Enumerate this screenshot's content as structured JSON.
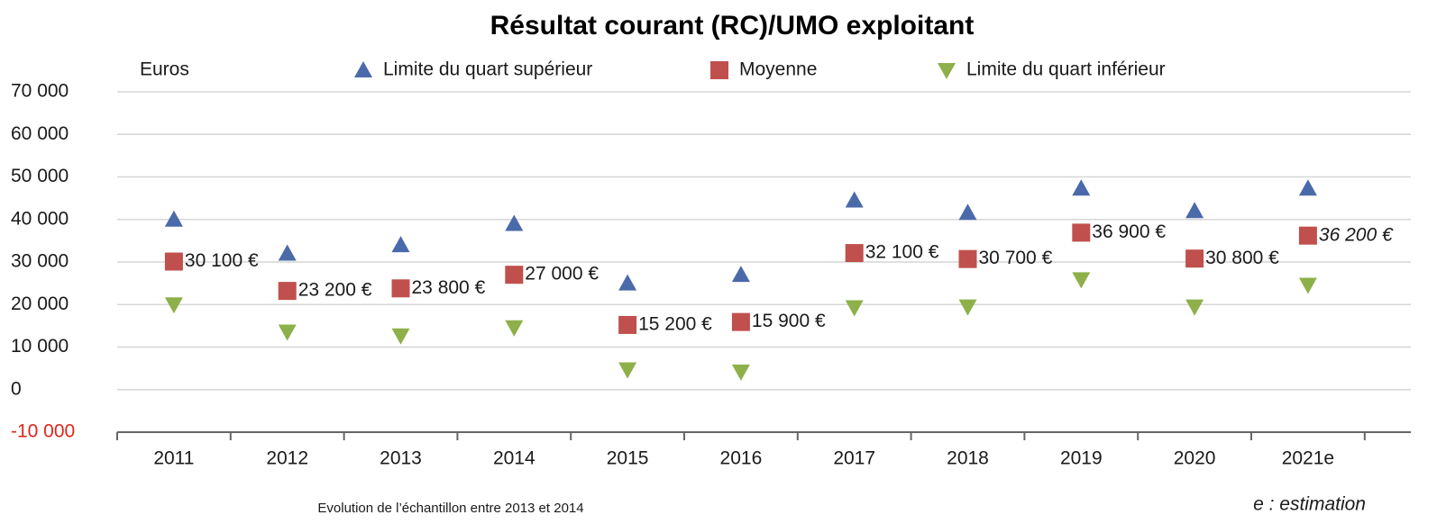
{
  "chart_data": {
    "type": "scatter",
    "title": "Résultat courant (RC)/UMO exploitant",
    "y_unit": "Euros",
    "footnote": "Evolution de l’échantillon entre 2013 et 2014",
    "estimation_note": "e : estimation",
    "categories": [
      "2011",
      "2012",
      "2013",
      "2014",
      "2015",
      "2016",
      "2017",
      "2018",
      "2019",
      "2020",
      "2021e"
    ],
    "series": [
      {
        "name": "Limite du quart supérieur",
        "color": "#4a6aaa",
        "marker": "triangle-up",
        "values": [
          40000,
          32000,
          34000,
          39000,
          25000,
          27000,
          44500,
          41600,
          47300,
          42000,
          47300
        ]
      },
      {
        "name": "Moyenne",
        "color": "#c0504d",
        "marker": "square",
        "values": [
          30100,
          23200,
          23800,
          27000,
          15200,
          15900,
          32100,
          30700,
          36900,
          30800,
          36200
        ],
        "value_labels": [
          "30 100 €",
          "23 200 €",
          "23 800 €",
          "27 000 €",
          "15 200 €",
          "15 900 €",
          "32 100 €",
          "30 700 €",
          "36 900 €",
          "30 800 €",
          "36 200 €"
        ]
      },
      {
        "name": "Limite du quart inférieur",
        "color": "#8db04a",
        "marker": "triangle-down",
        "values": [
          20000,
          13600,
          12700,
          14600,
          4700,
          4200,
          19300,
          19500,
          25900,
          19500,
          24600
        ]
      }
    ],
    "ylim": [
      -10000,
      70000
    ],
    "yticks": [
      {
        "value": -10000,
        "label": "-10 000"
      },
      0,
      {
        "value": 10000,
        "label": "10 000"
      },
      {
        "value": 20000,
        "label": "20 000"
      },
      {
        "value": 30000,
        "label": "30 000"
      },
      {
        "value": 40000,
        "label": "40 000"
      },
      {
        "value": 50000,
        "label": "50 000"
      },
      {
        "value": 60000,
        "label": "60 000"
      },
      {
        "value": 70000,
        "label": "70 000"
      }
    ],
    "grid": true,
    "legend": "top"
  }
}
